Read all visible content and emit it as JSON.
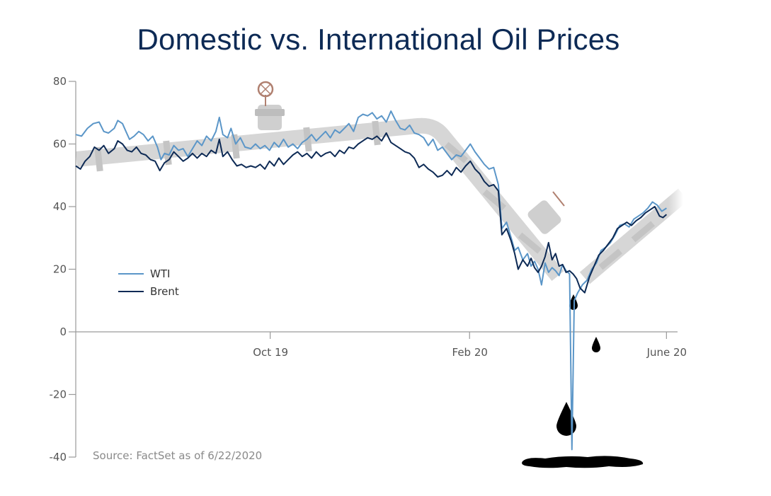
{
  "chart_data": {
    "type": "line",
    "title": "Domestic vs. International Oil Prices",
    "source": "Source: FactSet as of 6/22/2020",
    "ylim": [
      -40,
      80
    ],
    "yticks": [
      80,
      60,
      40,
      20,
      0,
      -20,
      -40
    ],
    "xticks": [
      {
        "label": "Oct 19",
        "x": 15.8
      },
      {
        "label": "Feb 20",
        "x": 32.0
      },
      {
        "label": "June 20",
        "x": 48.0
      }
    ],
    "xlim": [
      0,
      48.9
    ],
    "legend": {
      "placement": "left-middle"
    },
    "series": [
      {
        "name": "WTI",
        "color": "#5b96c8",
        "points": [
          [
            0,
            63
          ],
          [
            0.5,
            62.5
          ],
          [
            1,
            65
          ],
          [
            1.5,
            66.5
          ],
          [
            2,
            67
          ],
          [
            2.4,
            64
          ],
          [
            2.8,
            63.5
          ],
          [
            3.3,
            65
          ],
          [
            3.6,
            67.5
          ],
          [
            4,
            66.5
          ],
          [
            4.3,
            64
          ],
          [
            4.6,
            61.5
          ],
          [
            5,
            62.5
          ],
          [
            5.4,
            64
          ],
          [
            5.8,
            63
          ],
          [
            6.2,
            61
          ],
          [
            6.6,
            62.5
          ],
          [
            7,
            59
          ],
          [
            7.3,
            55
          ],
          [
            7.6,
            57
          ],
          [
            8,
            56.5
          ],
          [
            8.4,
            59.5
          ],
          [
            8.8,
            58
          ],
          [
            9.2,
            58.5
          ],
          [
            9.6,
            56
          ],
          [
            10,
            58.5
          ],
          [
            10.4,
            61
          ],
          [
            10.8,
            59.5
          ],
          [
            11.2,
            62.5
          ],
          [
            11.6,
            61
          ],
          [
            12,
            64
          ],
          [
            12.3,
            68.5
          ],
          [
            12.6,
            63
          ],
          [
            13,
            62
          ],
          [
            13.3,
            65
          ],
          [
            13.7,
            60
          ],
          [
            14.1,
            62
          ],
          [
            14.5,
            59
          ],
          [
            15,
            58.5
          ],
          [
            15.4,
            60
          ],
          [
            15.8,
            58.5
          ],
          [
            16.2,
            59.5
          ],
          [
            16.6,
            58
          ],
          [
            17,
            60.5
          ],
          [
            17.4,
            59
          ],
          [
            17.8,
            61.5
          ],
          [
            18.2,
            59
          ],
          [
            18.6,
            60
          ],
          [
            19,
            58.5
          ],
          [
            19.4,
            60.5
          ],
          [
            19.8,
            61.5
          ],
          [
            20.2,
            63
          ],
          [
            20.6,
            61
          ],
          [
            21,
            62.5
          ],
          [
            21.4,
            64
          ],
          [
            21.8,
            62
          ],
          [
            22.2,
            64.5
          ],
          [
            22.6,
            63.5
          ],
          [
            23,
            65
          ],
          [
            23.4,
            66.5
          ],
          [
            23.8,
            64
          ],
          [
            24.2,
            68.5
          ],
          [
            24.6,
            69.5
          ],
          [
            25,
            69
          ],
          [
            25.4,
            70
          ],
          [
            25.8,
            68
          ],
          [
            26.2,
            69
          ],
          [
            26.6,
            67
          ],
          [
            27,
            70.5
          ],
          [
            27.4,
            67.5
          ],
          [
            27.8,
            65
          ],
          [
            28.2,
            64.5
          ],
          [
            28.6,
            66
          ],
          [
            29,
            63.5
          ],
          [
            29.4,
            63
          ],
          [
            29.8,
            62
          ],
          [
            30.2,
            59.5
          ],
          [
            30.6,
            61.5
          ],
          [
            31,
            58
          ],
          [
            31.4,
            59
          ],
          [
            31.8,
            57
          ],
          [
            32.2,
            55
          ],
          [
            32.6,
            56.5
          ],
          [
            33,
            56
          ],
          [
            33.4,
            58
          ],
          [
            33.8,
            60
          ],
          [
            34.2,
            57.5
          ],
          [
            34.6,
            55.5
          ],
          [
            35,
            53.5
          ],
          [
            35.4,
            52
          ],
          [
            35.8,
            52.5
          ],
          [
            36.2,
            47
          ],
          [
            36.5,
            33
          ],
          [
            36.9,
            35
          ],
          [
            37.3,
            30
          ],
          [
            37.6,
            26
          ],
          [
            37.9,
            27
          ],
          [
            38.3,
            23
          ],
          [
            38.7,
            25
          ],
          [
            39,
            21
          ],
          [
            39.3,
            22.5
          ],
          [
            39.6,
            20
          ],
          [
            39.9,
            15
          ],
          [
            40.2,
            22
          ],
          [
            40.5,
            19
          ],
          [
            40.8,
            20.5
          ],
          [
            41.1,
            19.5
          ],
          [
            41.4,
            18
          ],
          [
            41.7,
            21.5
          ],
          [
            42,
            19.5
          ],
          [
            42.3,
            18.5
          ],
          [
            42.5,
            -37.6
          ],
          [
            42.7,
            10
          ],
          [
            43,
            12.5
          ],
          [
            43.4,
            15
          ],
          [
            43.8,
            16.5
          ],
          [
            44.2,
            20
          ],
          [
            44.6,
            22
          ],
          [
            45,
            26
          ],
          [
            45.4,
            27
          ],
          [
            45.8,
            28.5
          ],
          [
            46.2,
            31
          ],
          [
            46.6,
            34
          ],
          [
            47,
            34.5
          ],
          [
            47.4,
            33.5
          ],
          [
            47.8,
            36
          ],
          [
            48.2,
            37
          ],
          [
            48.6,
            38
          ],
          [
            49,
            39.5
          ],
          [
            49.4,
            41.5
          ],
          [
            49.8,
            40.5
          ],
          [
            50.2,
            38.5
          ],
          [
            50.6,
            39.5
          ]
        ]
      },
      {
        "name": "Brent",
        "color": "#0d2a55",
        "points": [
          [
            0,
            53
          ],
          [
            0.4,
            52
          ],
          [
            0.8,
            54.5
          ],
          [
            1.2,
            56
          ],
          [
            1.6,
            59
          ],
          [
            2,
            58
          ],
          [
            2.4,
            59.5
          ],
          [
            2.8,
            57
          ],
          [
            3.3,
            58.5
          ],
          [
            3.6,
            61
          ],
          [
            4,
            60
          ],
          [
            4.4,
            58
          ],
          [
            4.8,
            57.5
          ],
          [
            5.2,
            59
          ],
          [
            5.6,
            57
          ],
          [
            6,
            56.5
          ],
          [
            6.4,
            55
          ],
          [
            6.8,
            54.5
          ],
          [
            7.2,
            51.5
          ],
          [
            7.6,
            54
          ],
          [
            8,
            55
          ],
          [
            8.4,
            57.5
          ],
          [
            8.8,
            56
          ],
          [
            9.2,
            54.5
          ],
          [
            9.6,
            55.5
          ],
          [
            10,
            57
          ],
          [
            10.4,
            55.5
          ],
          [
            10.8,
            57
          ],
          [
            11.2,
            56
          ],
          [
            11.6,
            58
          ],
          [
            12,
            57
          ],
          [
            12.3,
            61.5
          ],
          [
            12.6,
            56
          ],
          [
            13,
            57.5
          ],
          [
            13.4,
            55
          ],
          [
            13.8,
            53
          ],
          [
            14.2,
            53.5
          ],
          [
            14.6,
            52.5
          ],
          [
            15,
            53
          ],
          [
            15.4,
            52.5
          ],
          [
            15.8,
            53.5
          ],
          [
            16.2,
            52
          ],
          [
            16.6,
            54.5
          ],
          [
            17,
            53
          ],
          [
            17.4,
            55.5
          ],
          [
            17.8,
            53.5
          ],
          [
            18.2,
            55
          ],
          [
            18.6,
            56.5
          ],
          [
            19,
            57.5
          ],
          [
            19.4,
            56
          ],
          [
            19.8,
            57
          ],
          [
            20.2,
            55.5
          ],
          [
            20.6,
            57.5
          ],
          [
            21,
            56
          ],
          [
            21.4,
            57
          ],
          [
            21.8,
            57.5
          ],
          [
            22.2,
            56
          ],
          [
            22.6,
            58
          ],
          [
            23,
            57
          ],
          [
            23.4,
            59
          ],
          [
            23.8,
            58.5
          ],
          [
            24.2,
            60
          ],
          [
            24.6,
            61
          ],
          [
            25,
            62
          ],
          [
            25.4,
            61.5
          ],
          [
            25.8,
            62.5
          ],
          [
            26.2,
            61
          ],
          [
            26.6,
            63.5
          ],
          [
            27,
            60.5
          ],
          [
            27.4,
            59.5
          ],
          [
            27.8,
            58.5
          ],
          [
            28.2,
            57.5
          ],
          [
            28.6,
            57
          ],
          [
            29,
            55.5
          ],
          [
            29.4,
            52.5
          ],
          [
            29.8,
            53.5
          ],
          [
            30.2,
            52
          ],
          [
            30.6,
            51
          ],
          [
            31,
            49.5
          ],
          [
            31.4,
            50
          ],
          [
            31.8,
            51.5
          ],
          [
            32.2,
            50
          ],
          [
            32.6,
            52.5
          ],
          [
            33,
            51
          ],
          [
            33.4,
            53
          ],
          [
            33.8,
            54.5
          ],
          [
            34.2,
            52
          ],
          [
            34.6,
            50.5
          ],
          [
            35,
            48
          ],
          [
            35.4,
            46.5
          ],
          [
            35.8,
            47
          ],
          [
            36.2,
            45
          ],
          [
            36.5,
            31
          ],
          [
            36.9,
            33
          ],
          [
            37.3,
            29
          ],
          [
            37.6,
            25
          ],
          [
            37.9,
            20
          ],
          [
            38.3,
            23
          ],
          [
            38.7,
            21
          ],
          [
            39,
            23.5
          ],
          [
            39.3,
            20.5
          ],
          [
            39.6,
            19
          ],
          [
            39.9,
            21
          ],
          [
            40.2,
            24
          ],
          [
            40.5,
            28.5
          ],
          [
            40.8,
            23
          ],
          [
            41.1,
            25
          ],
          [
            41.4,
            21
          ],
          [
            41.7,
            21.5
          ],
          [
            42,
            19
          ],
          [
            42.3,
            19.5
          ],
          [
            42.6,
            18.5
          ],
          [
            42.9,
            17
          ],
          [
            43.2,
            14
          ],
          [
            43.6,
            12.5
          ],
          [
            44,
            17.5
          ],
          [
            44.4,
            21
          ],
          [
            44.8,
            24.5
          ],
          [
            45.2,
            26
          ],
          [
            45.6,
            28
          ],
          [
            46,
            30
          ],
          [
            46.4,
            33
          ],
          [
            46.8,
            34
          ],
          [
            47.2,
            35
          ],
          [
            47.6,
            34
          ],
          [
            48,
            35.5
          ],
          [
            48.4,
            36.5
          ],
          [
            48.8,
            38
          ],
          [
            49.2,
            39
          ],
          [
            49.6,
            40
          ],
          [
            50,
            37
          ],
          [
            50.3,
            36.5
          ],
          [
            50.6,
            37.5
          ]
        ]
      }
    ]
  }
}
